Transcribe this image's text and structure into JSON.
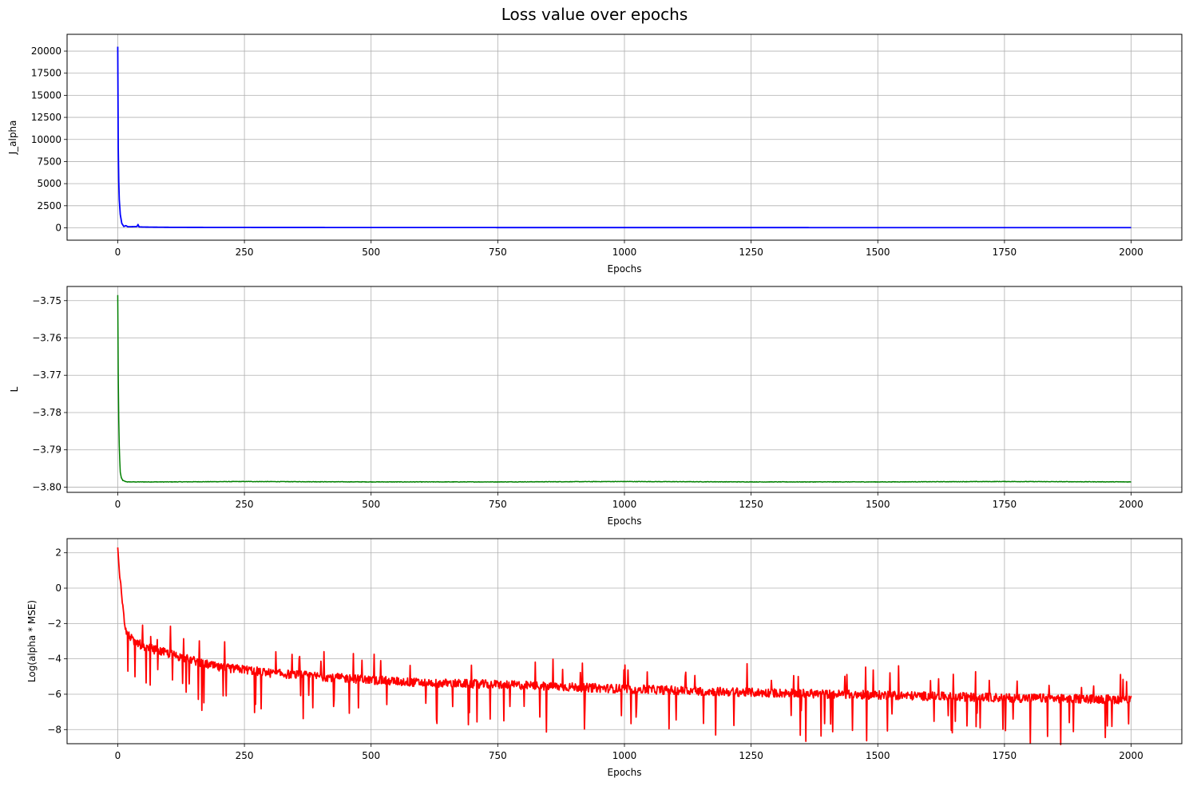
{
  "figure": {
    "title": "Loss value over epochs"
  },
  "chart_data": [
    {
      "type": "line",
      "xlabel": "Epochs",
      "ylabel": "J_alpha",
      "xlim": [
        -100,
        2100
      ],
      "ylim": [
        -1400,
        21900
      ],
      "xticks": [
        0,
        250,
        500,
        750,
        1000,
        1250,
        1500,
        1750,
        2000
      ],
      "yticks": [
        0,
        2500,
        5000,
        7500,
        10000,
        12500,
        15000,
        17500,
        20000
      ],
      "grid": true,
      "color": "#0000ff",
      "series": [
        {
          "x": [
            0,
            1,
            2,
            3,
            5,
            8,
            12,
            16,
            20,
            30,
            38,
            40,
            42,
            50,
            70,
            100,
            150,
            200,
            300,
            500,
            750,
            1000,
            1250,
            1500,
            1750,
            2000
          ],
          "y": [
            20500,
            9000,
            5200,
            3200,
            1500,
            500,
            150,
            250,
            120,
            130,
            150,
            380,
            110,
            90,
            75,
            60,
            50,
            45,
            40,
            35,
            30,
            28,
            26,
            25,
            24,
            23
          ]
        }
      ]
    },
    {
      "type": "line",
      "xlabel": "Epochs",
      "ylabel": "L",
      "xlim": [
        -100,
        2100
      ],
      "ylim": [
        -3.8014,
        -3.7462
      ],
      "xticks": [
        0,
        250,
        500,
        750,
        1000,
        1250,
        1500,
        1750,
        2000
      ],
      "yticks": [
        -3.8,
        -3.79,
        -3.78,
        -3.77,
        -3.76,
        -3.75
      ],
      "grid": true,
      "color": "#008000",
      "series": [
        {
          "x": [
            0,
            1,
            2,
            3,
            4,
            5,
            7,
            10,
            15,
            20,
            50,
            100,
            250,
            500,
            750,
            1000,
            1250,
            1500,
            1750,
            2000
          ],
          "y": [
            -3.7485,
            -3.77,
            -3.782,
            -3.789,
            -3.793,
            -3.796,
            -3.7975,
            -3.7982,
            -3.7985,
            -3.7986,
            -3.7986,
            -3.7986,
            -3.7985,
            -3.7986,
            -3.7986,
            -3.7985,
            -3.7986,
            -3.7986,
            -3.7985,
            -3.7986
          ]
        }
      ]
    },
    {
      "type": "line",
      "xlabel": "Epochs",
      "ylabel": "Log(alpha * MSE)",
      "xlim": [
        -100,
        2100
      ],
      "ylim": [
        -8.8,
        2.8
      ],
      "xticks": [
        0,
        250,
        500,
        750,
        1000,
        1250,
        1500,
        1750,
        2000
      ],
      "yticks": [
        -8,
        -6,
        -4,
        -2,
        0,
        2
      ],
      "grid": true,
      "color": "#ff0000",
      "series": [
        {
          "x": [
            0,
            3,
            6,
            10,
            14,
            18,
            22,
            30,
            40,
            50,
            75,
            100,
            150,
            200,
            250,
            300,
            400,
            500,
            600,
            750,
            800,
            1000,
            1250,
            1500,
            1750,
            2000
          ],
          "y": [
            2.3,
            1.0,
            0.4,
            -1.0,
            -2.0,
            -2.5,
            -2.6,
            -3.0,
            -3.1,
            -3.3,
            -3.5,
            -3.7,
            -4.1,
            -4.5,
            -4.6,
            -4.8,
            -5.0,
            -5.2,
            -5.35,
            -5.45,
            -5.5,
            -5.7,
            -5.9,
            -6.05,
            -6.2,
            -6.3
          ]
        }
      ]
    }
  ]
}
